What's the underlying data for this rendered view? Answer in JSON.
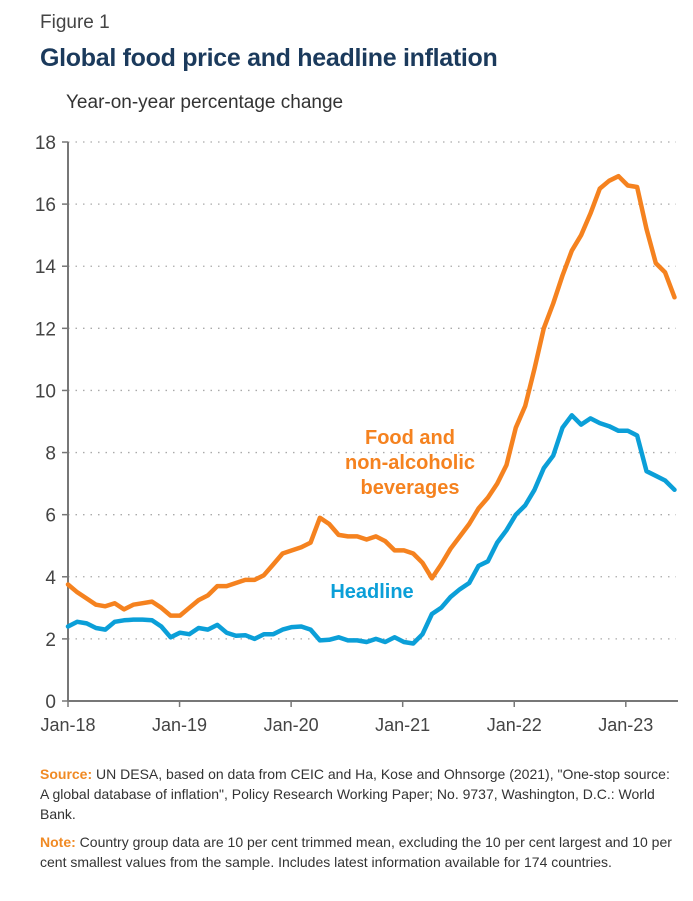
{
  "figure_label": "Figure 1",
  "chart_data": {
    "type": "line",
    "title": "Global food price and headline inflation",
    "ylabel": "Year-on-year percentage change",
    "ylim": [
      0,
      18
    ],
    "yticks": [
      "0",
      "2",
      "4",
      "6",
      "8",
      "10",
      "12",
      "14",
      "16",
      "18"
    ],
    "xticks": [
      "Jan-18",
      "Jan-19",
      "Jan-20",
      "Jan-21",
      "Jan-22",
      "Jan-23"
    ],
    "x_start": "Jan-18",
    "x_frequency": "monthly",
    "x_end": "Jun-23",
    "grid": "horizontal dotted",
    "series": [
      {
        "name": "Food and non-alcoholic beverages",
        "label_lines": [
          "Food and",
          "non-alcoholic",
          "beverages"
        ],
        "color": "#f5821f",
        "values": [
          3.75,
          3.5,
          3.3,
          3.1,
          3.05,
          3.15,
          2.95,
          3.1,
          3.15,
          3.2,
          3.0,
          2.75,
          2.75,
          3.0,
          3.25,
          3.4,
          3.7,
          3.7,
          3.8,
          3.9,
          3.9,
          4.05,
          4.4,
          4.75,
          4.85,
          4.95,
          5.1,
          5.9,
          5.7,
          5.35,
          5.3,
          5.3,
          5.2,
          5.3,
          5.15,
          4.85,
          4.85,
          4.75,
          4.45,
          3.95,
          4.4,
          4.9,
          5.3,
          5.7,
          6.2,
          6.55,
          7.0,
          7.6,
          8.8,
          9.5,
          10.7,
          12.0,
          12.8,
          13.7,
          14.5,
          15.0,
          15.7,
          16.5,
          16.75,
          16.9,
          16.6,
          16.55,
          15.2,
          14.1,
          13.8,
          13.0
        ]
      },
      {
        "name": "Headline",
        "label_lines": [
          "Headline"
        ],
        "color": "#0b9fd8",
        "values": [
          2.4,
          2.55,
          2.5,
          2.35,
          2.3,
          2.55,
          2.6,
          2.62,
          2.62,
          2.6,
          2.4,
          2.05,
          2.2,
          2.15,
          2.35,
          2.3,
          2.45,
          2.2,
          2.1,
          2.12,
          2.0,
          2.15,
          2.15,
          2.3,
          2.38,
          2.4,
          2.3,
          1.95,
          1.97,
          2.05,
          1.95,
          1.95,
          1.9,
          2.0,
          1.9,
          2.05,
          1.9,
          1.85,
          2.15,
          2.8,
          3.0,
          3.35,
          3.6,
          3.8,
          4.35,
          4.5,
          5.1,
          5.5,
          6.0,
          6.3,
          6.8,
          7.5,
          7.9,
          8.8,
          9.2,
          8.9,
          9.1,
          8.95,
          8.85,
          8.7,
          8.7,
          8.55,
          7.4,
          7.25,
          7.1,
          6.8
        ]
      }
    ]
  },
  "source": {
    "label": "Source:",
    "text": "UN DESA, based on data from CEIC and Ha, Kose and Ohnsorge (2021), \"One-stop source: A global database of inflation\", Policy Research Working Paper; No. 9737, Washington, D.C.: World Bank."
  },
  "note": {
    "label": "Note:",
    "text": "Country group data are 10 per cent trimmed mean, excluding the 10 per cent largest and 10 per cent smallest values from the sample. Includes latest information available for 174 countries."
  }
}
